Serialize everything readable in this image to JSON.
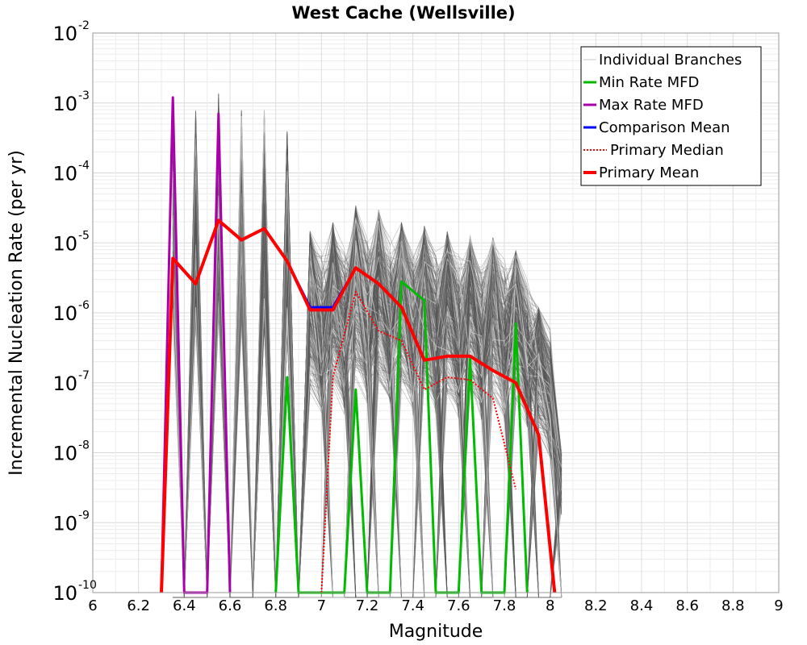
{
  "chart_data": {
    "type": "line",
    "title": "West Cache (Wellsville)",
    "xlabel": "Magnitude",
    "ylabel": "Incremental Nucleation Rate (per yr)",
    "xlim": [
      6,
      9
    ],
    "ylim": [
      1e-10,
      0.01
    ],
    "y_scale": "log",
    "grid": true,
    "legend_position": "top-right",
    "x_ticks": [
      "6",
      "6.2",
      "6.4",
      "6.6",
      "6.8",
      "7",
      "7.2",
      "7.4",
      "7.6",
      "7.8",
      "8",
      "8.2",
      "8.4",
      "8.6",
      "8.8",
      "9"
    ],
    "y_ticks": [
      {
        "base": "10",
        "exp": "-2"
      },
      {
        "base": "10",
        "exp": "-3"
      },
      {
        "base": "10",
        "exp": "-4"
      },
      {
        "base": "10",
        "exp": "-5"
      },
      {
        "base": "10",
        "exp": "-6"
      },
      {
        "base": "10",
        "exp": "-7"
      },
      {
        "base": "10",
        "exp": "-8"
      },
      {
        "base": "10",
        "exp": "-9"
      },
      {
        "base": "10",
        "exp": "-10"
      }
    ],
    "branch_envelope": {
      "name": "Individual Branches",
      "color": "#555555",
      "x": [
        6.35,
        6.45,
        6.55,
        6.65,
        6.75,
        6.85,
        6.95,
        7.05,
        7.15,
        7.25,
        7.35,
        7.45,
        7.55,
        7.65,
        7.75,
        7.85,
        7.95,
        8.05
      ],
      "max": [
        0.0012,
        0.0008,
        0.0014,
        0.0008,
        0.0008,
        0.0004,
        1.5e-05,
        2e-05,
        3.5e-05,
        3e-05,
        2e-05,
        1.8e-05,
        1.5e-05,
        1.3e-05,
        1.2e-05,
        8e-06,
        1.2e-06,
        1e-08
      ],
      "min": [
        1e-10,
        1e-10,
        1e-10,
        1e-10,
        1e-10,
        1e-10,
        1e-10,
        1e-10,
        1e-10,
        1e-10,
        1e-10,
        1e-10,
        1e-10,
        1e-10,
        1e-10,
        1e-10,
        1e-10,
        1e-10
      ]
    },
    "series": [
      {
        "name": "Min Rate MFD",
        "color": "#00bb00",
        "style": "solid",
        "x": [
          6.8,
          6.85,
          6.9,
          7.1,
          7.15,
          7.2,
          7.3,
          7.35,
          7.45,
          7.5,
          7.6,
          7.65,
          7.7,
          7.8,
          7.85,
          7.9
        ],
        "values": [
          1e-10,
          1.2e-07,
          1e-10,
          1e-10,
          8e-08,
          1e-10,
          1e-10,
          2.8e-06,
          1.5e-06,
          1e-10,
          1e-10,
          2.2e-07,
          1e-10,
          1e-10,
          7e-07,
          1e-10
        ]
      },
      {
        "name": "Max Rate MFD",
        "color": "#aa00aa",
        "style": "solid",
        "x": [
          6.3,
          6.35,
          6.4,
          6.5,
          6.55,
          6.6
        ],
        "values": [
          1e-10,
          0.0012,
          1e-10,
          1e-10,
          0.0007,
          1e-10
        ]
      },
      {
        "name": "Comparison Mean",
        "color": "#0000ff",
        "style": "solid",
        "x": [
          6.3,
          6.35,
          6.45,
          6.55,
          6.65,
          6.75,
          6.85,
          6.95,
          7.05,
          7.15,
          7.25,
          7.35,
          7.45,
          7.55,
          7.65,
          7.75,
          7.85,
          7.95,
          8.02
        ],
        "values": [
          1e-10,
          6e-06,
          2.6e-06,
          2.1e-05,
          1.1e-05,
          1.6e-05,
          5.5e-06,
          1.2e-06,
          1.2e-06,
          4.4e-06,
          2.6e-06,
          1.2e-06,
          2.1e-07,
          2.4e-07,
          2.4e-07,
          1.5e-07,
          1e-07,
          1.8e-08,
          1e-10
        ]
      },
      {
        "name": "Primary Median",
        "color": "#ff0000",
        "style": "dotted",
        "x": [
          7.0,
          7.05,
          7.15,
          7.25,
          7.35,
          7.45,
          7.55,
          7.65,
          7.75,
          7.85
        ],
        "values": [
          1e-10,
          1.2e-07,
          2e-06,
          5.5e-07,
          4e-07,
          8e-08,
          1.2e-07,
          1.1e-07,
          6e-08,
          3e-09
        ]
      },
      {
        "name": "Primary Mean",
        "color": "#ff0000",
        "style": "solid",
        "x": [
          6.3,
          6.35,
          6.45,
          6.55,
          6.65,
          6.75,
          6.85,
          6.95,
          7.05,
          7.15,
          7.25,
          7.35,
          7.45,
          7.55,
          7.65,
          7.75,
          7.85,
          7.95,
          8.02
        ],
        "values": [
          1e-10,
          6e-06,
          2.6e-06,
          2.1e-05,
          1.1e-05,
          1.6e-05,
          5.5e-06,
          1.1e-06,
          1.1e-06,
          4.4e-06,
          2.6e-06,
          1.2e-06,
          2.1e-07,
          2.4e-07,
          2.4e-07,
          1.5e-07,
          1e-07,
          1.8e-08,
          1e-10
        ]
      }
    ],
    "legend": [
      {
        "label": "Individual Branches",
        "color": "#c8c8c8",
        "style": "thin"
      },
      {
        "label": "Min Rate MFD",
        "color": "#00bb00",
        "style": "solid"
      },
      {
        "label": "Max Rate MFD",
        "color": "#aa00aa",
        "style": "solid"
      },
      {
        "label": "Comparison Mean",
        "color": "#0000ff",
        "style": "solid"
      },
      {
        "label": "Primary Median",
        "color": "#ff0000",
        "style": "dotted"
      },
      {
        "label": "Primary Mean",
        "color": "#ff0000",
        "style": "thick"
      }
    ]
  }
}
